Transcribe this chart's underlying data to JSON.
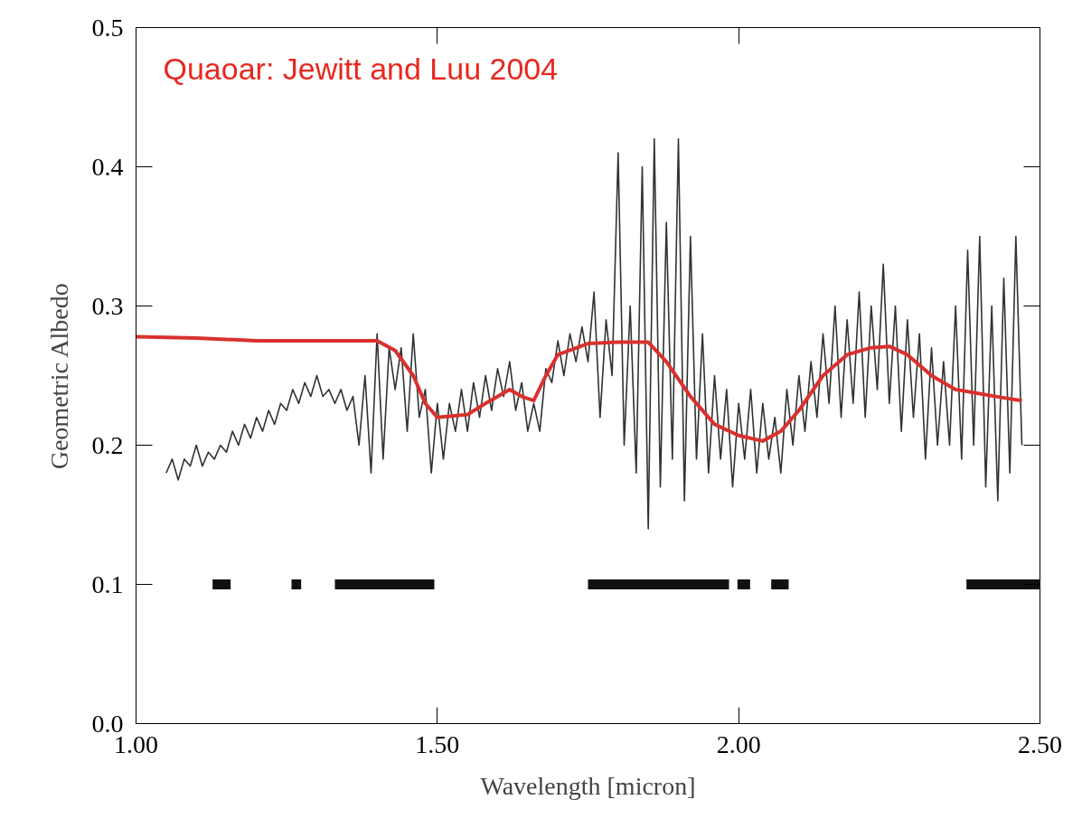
{
  "chart_data": {
    "type": "line",
    "xlabel": "Wavelength [micron]",
    "ylabel": "Geometric Albedo",
    "annotations": [
      "Quaoar: Jewitt and Luu 2004"
    ],
    "xlim": [
      1.0,
      2.5
    ],
    "ylim": [
      0.0,
      0.5
    ],
    "xticks": [
      {
        "value": 1.0,
        "label": "1.00"
      },
      {
        "value": 1.5,
        "label": "1.50"
      },
      {
        "value": 2.0,
        "label": "2.00"
      },
      {
        "value": 2.5,
        "label": "2.50"
      }
    ],
    "yticks": [
      {
        "value": 0.0,
        "label": "0.0"
      },
      0.1,
      0.2,
      0.3,
      0.4,
      0.5
    ],
    "grid": false,
    "marker": "none",
    "line_style": "solid",
    "series": [
      {
        "color": "#2f3333",
        "x": [
          1.05,
          1.06,
          1.07,
          1.08,
          1.09,
          1.1,
          1.11,
          1.12,
          1.13,
          1.14,
          1.15,
          1.16,
          1.17,
          1.18,
          1.19,
          1.2,
          1.21,
          1.22,
          1.23,
          1.24,
          1.25,
          1.26,
          1.27,
          1.28,
          1.29,
          1.3,
          1.31,
          1.32,
          1.33,
          1.34,
          1.35,
          1.36,
          1.37,
          1.38,
          1.39,
          1.4,
          1.41,
          1.42,
          1.43,
          1.44,
          1.45,
          1.46,
          1.47,
          1.48,
          1.49,
          1.5,
          1.51,
          1.52,
          1.53,
          1.54,
          1.55,
          1.56,
          1.57,
          1.58,
          1.59,
          1.6,
          1.61,
          1.62,
          1.63,
          1.64,
          1.65,
          1.66,
          1.67,
          1.68,
          1.69,
          1.7,
          1.71,
          1.72,
          1.73,
          1.74,
          1.75,
          1.76,
          1.77,
          1.78,
          1.79,
          1.8,
          1.81,
          1.82,
          1.83,
          1.84,
          1.85,
          1.86,
          1.87,
          1.88,
          1.89,
          1.9,
          1.91,
          1.92,
          1.93,
          1.94,
          1.95,
          1.96,
          1.97,
          1.98,
          1.99,
          2.0,
          2.01,
          2.02,
          2.03,
          2.04,
          2.05,
          2.06,
          2.07,
          2.08,
          2.09,
          2.1,
          2.11,
          2.12,
          2.13,
          2.14,
          2.15,
          2.16,
          2.17,
          2.18,
          2.19,
          2.2,
          2.21,
          2.22,
          2.23,
          2.24,
          2.25,
          2.26,
          2.27,
          2.28,
          2.29,
          2.3,
          2.31,
          2.32,
          2.33,
          2.34,
          2.35,
          2.36,
          2.37,
          2.38,
          2.39,
          2.4,
          2.41,
          2.42,
          2.43,
          2.44,
          2.45,
          2.46,
          2.47
        ],
        "values": [
          0.18,
          0.19,
          0.175,
          0.19,
          0.185,
          0.2,
          0.185,
          0.195,
          0.19,
          0.2,
          0.195,
          0.21,
          0.2,
          0.215,
          0.205,
          0.22,
          0.21,
          0.225,
          0.215,
          0.23,
          0.225,
          0.24,
          0.23,
          0.245,
          0.235,
          0.25,
          0.235,
          0.24,
          0.23,
          0.24,
          0.225,
          0.235,
          0.2,
          0.25,
          0.18,
          0.28,
          0.19,
          0.27,
          0.24,
          0.27,
          0.21,
          0.28,
          0.22,
          0.24,
          0.18,
          0.23,
          0.19,
          0.23,
          0.21,
          0.24,
          0.21,
          0.245,
          0.22,
          0.25,
          0.225,
          0.255,
          0.235,
          0.26,
          0.225,
          0.245,
          0.21,
          0.23,
          0.21,
          0.255,
          0.245,
          0.275,
          0.25,
          0.28,
          0.26,
          0.285,
          0.26,
          0.31,
          0.22,
          0.29,
          0.25,
          0.41,
          0.2,
          0.3,
          0.18,
          0.4,
          0.14,
          0.42,
          0.17,
          0.36,
          0.19,
          0.42,
          0.16,
          0.35,
          0.19,
          0.28,
          0.18,
          0.25,
          0.19,
          0.24,
          0.17,
          0.23,
          0.19,
          0.24,
          0.18,
          0.23,
          0.19,
          0.22,
          0.18,
          0.24,
          0.2,
          0.25,
          0.21,
          0.26,
          0.22,
          0.28,
          0.23,
          0.3,
          0.22,
          0.29,
          0.23,
          0.31,
          0.22,
          0.3,
          0.24,
          0.33,
          0.23,
          0.3,
          0.21,
          0.29,
          0.22,
          0.28,
          0.19,
          0.27,
          0.2,
          0.26,
          0.2,
          0.3,
          0.19,
          0.34,
          0.2,
          0.35,
          0.17,
          0.3,
          0.16,
          0.32,
          0.18,
          0.35,
          0.2
        ]
      },
      {
        "color": "#d9312e",
        "x": [
          1.0,
          1.1,
          1.2,
          1.3,
          1.4,
          1.43,
          1.46,
          1.48,
          1.5,
          1.55,
          1.58,
          1.62,
          1.64,
          1.66,
          1.68,
          1.7,
          1.75,
          1.8,
          1.85,
          1.88,
          1.92,
          1.96,
          2.0,
          2.04,
          2.07,
          2.1,
          2.14,
          2.18,
          2.22,
          2.25,
          2.28,
          2.32,
          2.36,
          2.4,
          2.44,
          2.47
        ],
        "values": [
          0.278,
          0.277,
          0.275,
          0.275,
          0.275,
          0.268,
          0.25,
          0.23,
          0.22,
          0.222,
          0.23,
          0.24,
          0.235,
          0.232,
          0.25,
          0.265,
          0.273,
          0.274,
          0.274,
          0.26,
          0.235,
          0.215,
          0.207,
          0.203,
          0.21,
          0.225,
          0.25,
          0.265,
          0.27,
          0.271,
          0.265,
          0.25,
          0.24,
          0.237,
          0.234,
          0.232
        ]
      },
      {
        "color": "#111111",
        "x": [
          1.127,
          1.157,
          1.2,
          1.258,
          1.274,
          1.3,
          1.33,
          1.495,
          1.6,
          1.75,
          1.984,
          1.99,
          1.998,
          2.019,
          2.03,
          2.054,
          2.083,
          2.2,
          2.378,
          2.5
        ],
        "values": [
          0.1,
          0.1,
          null,
          0.1,
          0.1,
          null,
          0.1,
          0.1,
          null,
          0.1,
          0.1,
          null,
          0.1,
          0.1,
          null,
          0.1,
          0.1,
          null,
          0.1,
          0.1
        ]
      }
    ]
  }
}
